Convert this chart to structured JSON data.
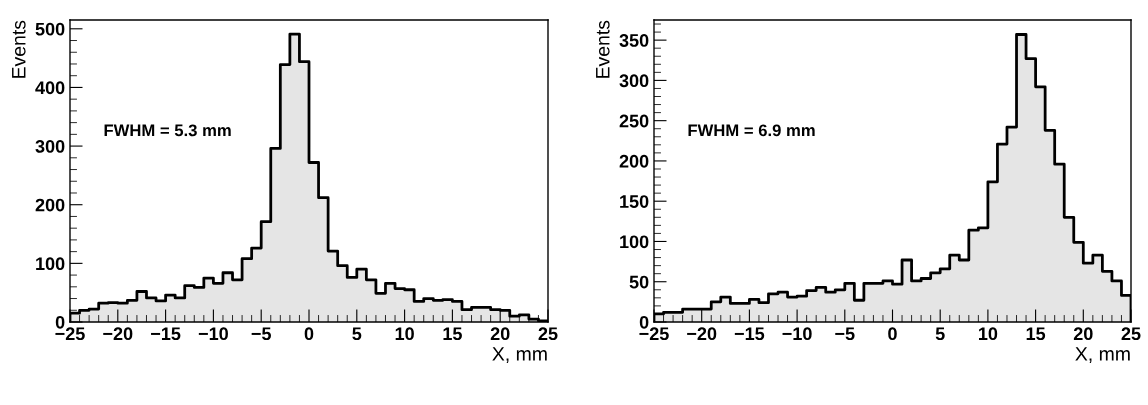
{
  "chart_data": [
    {
      "type": "histogram",
      "xlabel": "X, mm",
      "ylabel": "Events",
      "annotations": [
        "FWHM = 5.3 mm"
      ],
      "bins": [
        -25,
        -24,
        -23,
        -22,
        -21,
        -20,
        -19,
        -18,
        -17,
        -16,
        -15,
        -14,
        -13,
        -12,
        -11,
        -10,
        -9,
        -8,
        -7,
        -6,
        -5,
        -4,
        -3,
        -2,
        -1,
        0,
        1,
        2,
        3,
        4,
        5,
        6,
        7,
        8,
        9,
        10,
        11,
        12,
        13,
        14,
        15,
        16,
        17,
        18,
        19,
        20,
        21,
        22,
        23,
        24,
        25
      ],
      "values": [
        15,
        20,
        22,
        32,
        33,
        32,
        37,
        52,
        41,
        36,
        46,
        41,
        62,
        59,
        75,
        66,
        84,
        72,
        108,
        126,
        171,
        296,
        439,
        491,
        444,
        272,
        212,
        121,
        96,
        76,
        90,
        72,
        49,
        66,
        57,
        55,
        35,
        40,
        37,
        38,
        35,
        21,
        25,
        25,
        21,
        20,
        10,
        12,
        5,
        2
      ],
      "color": "#e5e5e5",
      "xlim": [
        -25,
        25
      ],
      "ylim": [
        0,
        515
      ],
      "xticks": [
        {
          "value": -25,
          "label": "−25"
        },
        {
          "value": -20,
          "label": "−20"
        },
        {
          "value": -15,
          "label": "−15"
        },
        {
          "value": -10,
          "label": "−10"
        },
        {
          "value": -5,
          "label": "−5"
        },
        0,
        5,
        10,
        15,
        20,
        25
      ],
      "yticks": [
        0,
        100,
        200,
        300,
        400,
        500
      ],
      "grid": false,
      "legend": false
    },
    {
      "type": "histogram",
      "xlabel": "X, mm",
      "ylabel": "Events",
      "annotations": [
        "FWHM = 6.9 mm"
      ],
      "bins": [
        -25,
        -24,
        -23,
        -22,
        -21,
        -20,
        -19,
        -18,
        -17,
        -16,
        -15,
        -14,
        -13,
        -12,
        -11,
        -10,
        -9,
        -8,
        -7,
        -6,
        -5,
        -4,
        -3,
        -2,
        -1,
        0,
        1,
        2,
        3,
        4,
        5,
        6,
        7,
        8,
        9,
        10,
        11,
        12,
        13,
        14,
        15,
        16,
        17,
        18,
        19,
        20,
        21,
        22,
        23,
        24,
        25
      ],
      "values": [
        10,
        12,
        12,
        16,
        16,
        16,
        25,
        31,
        23,
        23,
        28,
        24,
        35,
        37,
        31,
        32,
        39,
        43,
        37,
        40,
        48,
        27,
        48,
        48,
        51,
        47,
        77,
        51,
        54,
        61,
        66,
        83,
        77,
        114,
        117,
        174,
        221,
        242,
        357,
        327,
        292,
        238,
        196,
        130,
        99,
        73,
        83,
        63,
        51,
        33
      ],
      "color": "#e5e5e5",
      "xlim": [
        -25,
        25
      ],
      "ylim": [
        0,
        375
      ],
      "xticks": [
        {
          "value": -25,
          "label": "−25"
        },
        {
          "value": -20,
          "label": "−20"
        },
        {
          "value": -15,
          "label": "−15"
        },
        {
          "value": -10,
          "label": "−10"
        },
        {
          "value": -5,
          "label": "−5"
        },
        0,
        5,
        10,
        15,
        20,
        25
      ],
      "yticks": [
        0,
        50,
        100,
        150,
        200,
        250,
        300,
        350
      ],
      "grid": false,
      "legend": false
    }
  ]
}
